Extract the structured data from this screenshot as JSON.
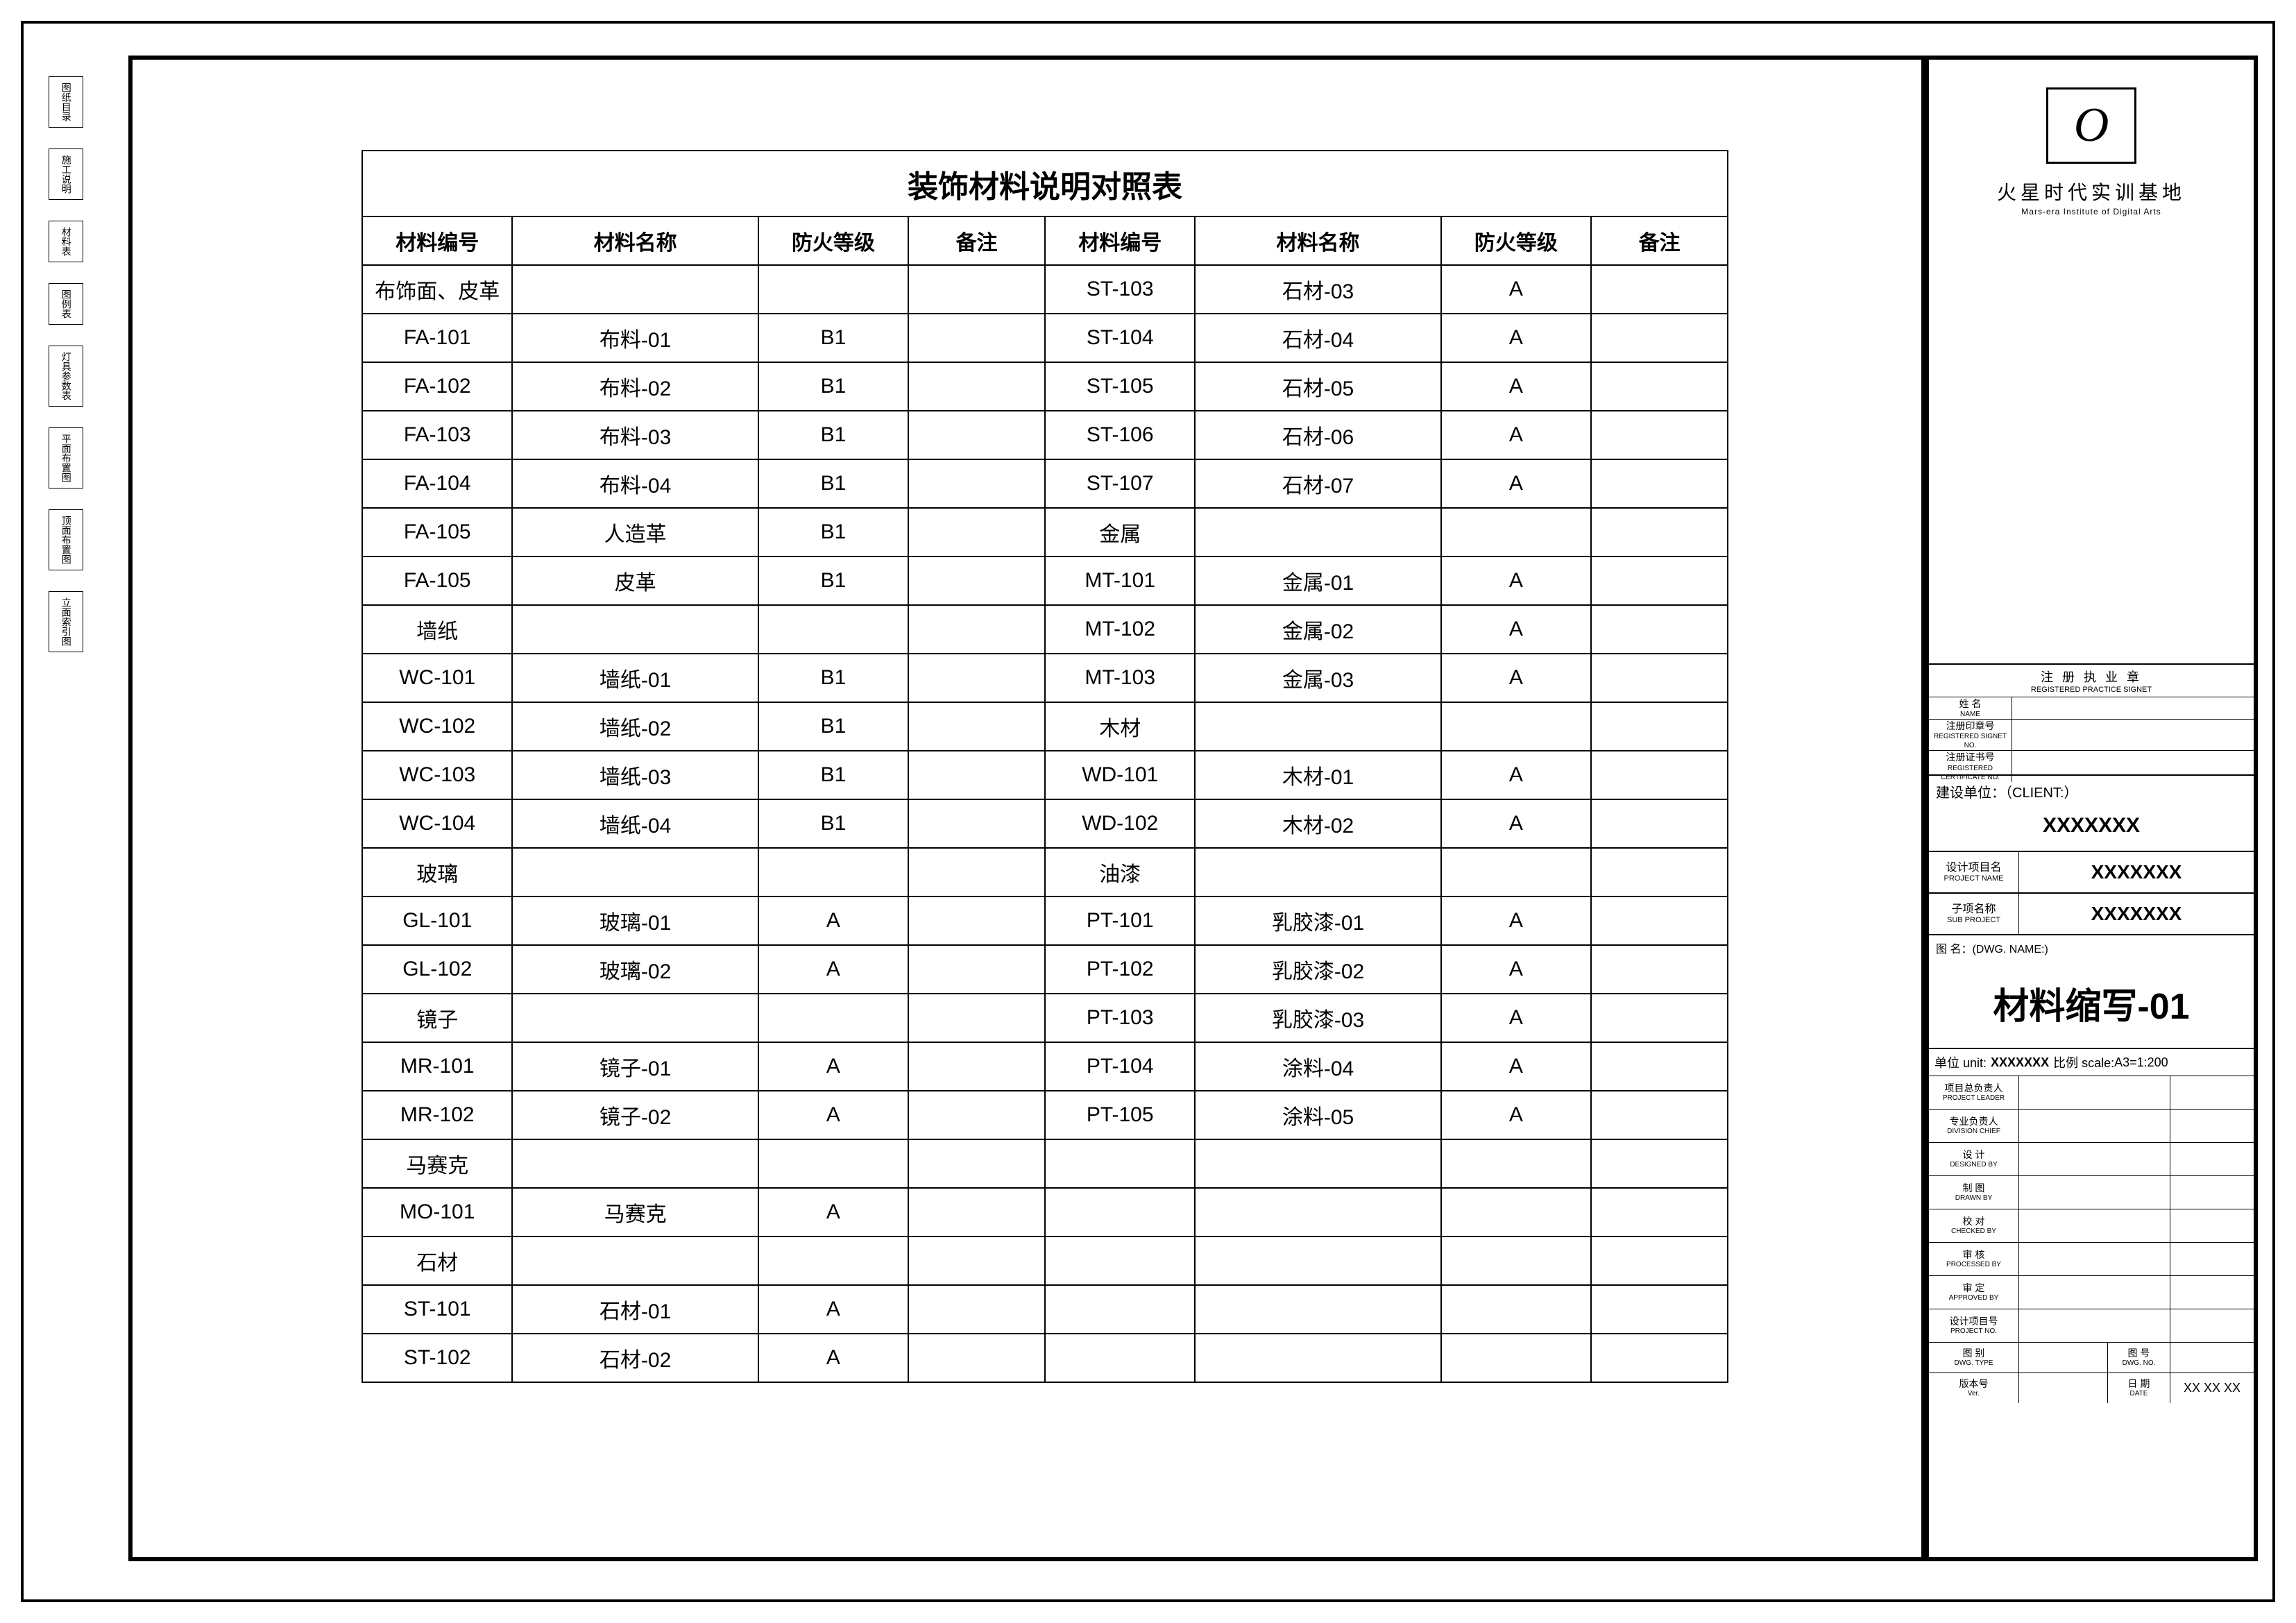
{
  "side_tabs": [
    "图纸目录",
    "施工说明",
    "材料表",
    "图例表",
    "灯具参数表",
    "平面布置图",
    "顶面布置图",
    "立面索引图"
  ],
  "table": {
    "title": "装饰材料说明对照表",
    "headers": [
      "材料编号",
      "材料名称",
      "防火等级",
      "备注"
    ],
    "left_rows": [
      {
        "code": "布饰面、皮革",
        "name": "",
        "fire": "",
        "note": ""
      },
      {
        "code": "FA-101",
        "name": "布料-01",
        "fire": "B1",
        "note": ""
      },
      {
        "code": "FA-102",
        "name": "布料-02",
        "fire": "B1",
        "note": ""
      },
      {
        "code": "FA-103",
        "name": "布料-03",
        "fire": "B1",
        "note": ""
      },
      {
        "code": "FA-104",
        "name": "布料-04",
        "fire": "B1",
        "note": ""
      },
      {
        "code": "FA-105",
        "name": "人造革",
        "fire": "B1",
        "note": ""
      },
      {
        "code": "FA-105",
        "name": "皮革",
        "fire": "B1",
        "note": ""
      },
      {
        "code": "墙纸",
        "name": "",
        "fire": "",
        "note": ""
      },
      {
        "code": "WC-101",
        "name": "墙纸-01",
        "fire": "B1",
        "note": ""
      },
      {
        "code": "WC-102",
        "name": "墙纸-02",
        "fire": "B1",
        "note": ""
      },
      {
        "code": "WC-103",
        "name": "墙纸-03",
        "fire": "B1",
        "note": ""
      },
      {
        "code": "WC-104",
        "name": "墙纸-04",
        "fire": "B1",
        "note": ""
      },
      {
        "code": "玻璃",
        "name": "",
        "fire": "",
        "note": ""
      },
      {
        "code": "GL-101",
        "name": "玻璃-01",
        "fire": "A",
        "note": ""
      },
      {
        "code": "GL-102",
        "name": "玻璃-02",
        "fire": "A",
        "note": ""
      },
      {
        "code": "镜子",
        "name": "",
        "fire": "",
        "note": ""
      },
      {
        "code": "MR-101",
        "name": "镜子-01",
        "fire": "A",
        "note": ""
      },
      {
        "code": "MR-102",
        "name": "镜子-02",
        "fire": "A",
        "note": ""
      },
      {
        "code": "马赛克",
        "name": "",
        "fire": "",
        "note": ""
      },
      {
        "code": "MO-101",
        "name": "马赛克",
        "fire": "A",
        "note": ""
      },
      {
        "code": "石材",
        "name": "",
        "fire": "",
        "note": ""
      },
      {
        "code": "ST-101",
        "name": "石材-01",
        "fire": "A",
        "note": ""
      },
      {
        "code": "ST-102",
        "name": "石材-02",
        "fire": "A",
        "note": ""
      }
    ],
    "right_rows": [
      {
        "code": "ST-103",
        "name": "石材-03",
        "fire": "A",
        "note": ""
      },
      {
        "code": "ST-104",
        "name": "石材-04",
        "fire": "A",
        "note": ""
      },
      {
        "code": "ST-105",
        "name": "石材-05",
        "fire": "A",
        "note": ""
      },
      {
        "code": "ST-106",
        "name": "石材-06",
        "fire": "A",
        "note": ""
      },
      {
        "code": "ST-107",
        "name": "石材-07",
        "fire": "A",
        "note": ""
      },
      {
        "code": "金属",
        "name": "",
        "fire": "",
        "note": ""
      },
      {
        "code": "MT-101",
        "name": "金属-01",
        "fire": "A",
        "note": ""
      },
      {
        "code": "MT-102",
        "name": "金属-02",
        "fire": "A",
        "note": ""
      },
      {
        "code": "MT-103",
        "name": "金属-03",
        "fire": "A",
        "note": ""
      },
      {
        "code": "木材",
        "name": "",
        "fire": "",
        "note": ""
      },
      {
        "code": "WD-101",
        "name": "木材-01",
        "fire": "A",
        "note": ""
      },
      {
        "code": "WD-102",
        "name": "木材-02",
        "fire": "A",
        "note": ""
      },
      {
        "code": "油漆",
        "name": "",
        "fire": "",
        "note": ""
      },
      {
        "code": "PT-101",
        "name": "乳胶漆-01",
        "fire": "A",
        "note": ""
      },
      {
        "code": "PT-102",
        "name": "乳胶漆-02",
        "fire": "A",
        "note": ""
      },
      {
        "code": "PT-103",
        "name": "乳胶漆-03",
        "fire": "A",
        "note": ""
      },
      {
        "code": "PT-104",
        "name": "涂料-04",
        "fire": "A",
        "note": ""
      },
      {
        "code": "PT-105",
        "name": "涂料-05",
        "fire": "A",
        "note": ""
      },
      {
        "code": "",
        "name": "",
        "fire": "",
        "note": ""
      },
      {
        "code": "",
        "name": "",
        "fire": "",
        "note": ""
      },
      {
        "code": "",
        "name": "",
        "fire": "",
        "note": ""
      },
      {
        "code": "",
        "name": "",
        "fire": "",
        "note": ""
      },
      {
        "code": "",
        "name": "",
        "fire": "",
        "note": ""
      }
    ]
  },
  "titleblock": {
    "company": "火星时代实训基地",
    "company_en": "Mars-era Institute of Digital Arts",
    "stamp_title": "注 册 执 业 章",
    "stamp_title_en": "REGISTERED PRACTICE SIGNET",
    "stamp_rows": [
      {
        "label_cn": "姓 名",
        "label_en": "NAME"
      },
      {
        "label_cn": "注册印章号",
        "label_en": "REGISTERED SIGNET NO."
      },
      {
        "label_cn": "注册证书号",
        "label_en": "REGISTERED CERTIFICATE NO."
      }
    ],
    "client_label": "建设单位：（CLIENT:）",
    "client_value": "XXXXXXX",
    "project_label_cn": "设计项目名",
    "project_label_en": "PROJECT NAME",
    "project_value": "XXXXXXX",
    "subproject_label_cn": "子项名称",
    "subproject_label_en": "SUB PROJECT",
    "subproject_value": "XXXXXXX",
    "dwgname_label": "图 名：(DWG. NAME:)",
    "dwgname": "材料缩写-01",
    "unit_label": "单位 unit:",
    "unit_value": "XXXXXXX",
    "scale_label": "比例 scale:",
    "scale_value": "A3=1:200",
    "signers": [
      {
        "cn": "项目总负责人",
        "en": "PROJECT LEADER"
      },
      {
        "cn": "专业负责人",
        "en": "DIVISION CHIEF"
      },
      {
        "cn": "设 计",
        "en": "DESIGNED BY"
      },
      {
        "cn": "制 图",
        "en": "DRAWN BY"
      },
      {
        "cn": "校 对",
        "en": "CHECKED BY"
      },
      {
        "cn": "审 核",
        "en": "PROCESSED BY"
      },
      {
        "cn": "审 定",
        "en": "APPROVED BY"
      },
      {
        "cn": "设计项目号",
        "en": "PROJECT NO."
      }
    ],
    "bottom": {
      "type_cn": "图 别",
      "type_en": "DWG. TYPE",
      "no_cn": "图 号",
      "no_en": "DWG. NO.",
      "ver_cn": "版本号",
      "ver_en": "Ver.",
      "date_cn": "日 期",
      "date_en": "DATE",
      "date_value": "XX XX XX"
    }
  }
}
